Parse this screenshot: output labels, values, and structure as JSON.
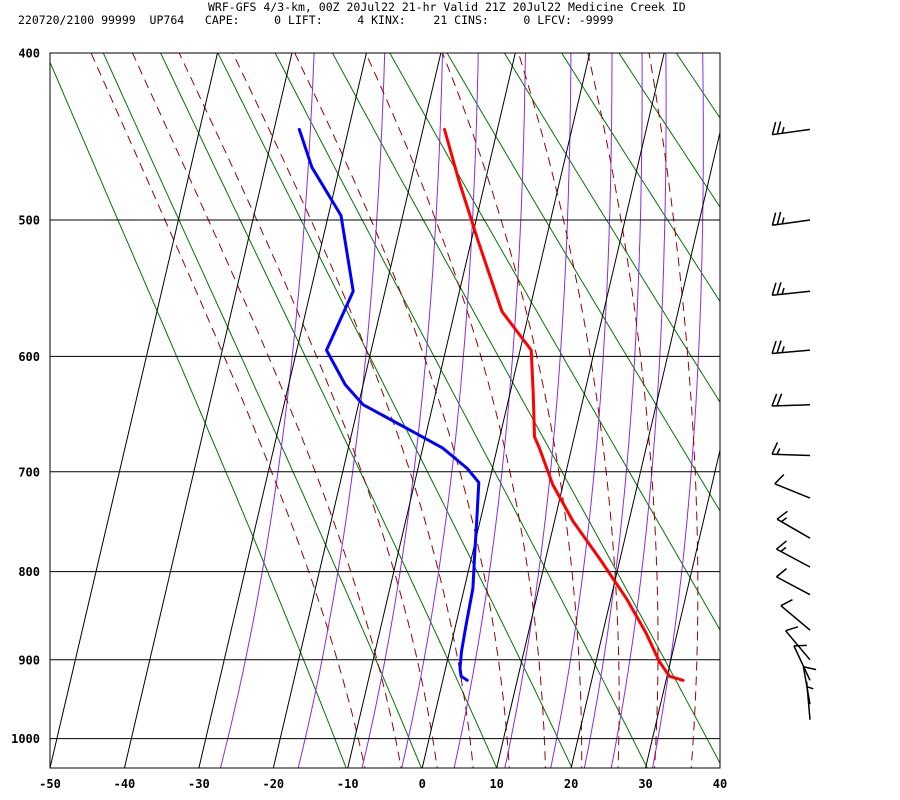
{
  "header": {
    "line1": "WRF-GFS 4/3-km, 00Z 20Jul22 21-hr Valid 21Z 20Jul22 Medicine Creek ID",
    "line2": "220720/2100 99999  UP764   CAPE:     0 LIFT:     4 KINX:    21 CINS:     0 LFCV: -9999"
  },
  "chart_data": {
    "type": "line",
    "title": "",
    "xlabel": "",
    "ylabel": "",
    "x_ticks": [
      -50,
      -40,
      -30,
      -20,
      -10,
      0,
      10,
      20,
      30,
      40
    ],
    "y_ticks": [
      400,
      500,
      600,
      700,
      800,
      900,
      1000
    ],
    "xlim": [
      -50,
      40
    ],
    "ylim": [
      1040,
      400
    ],
    "y_scale": "log",
    "grid": true,
    "series": [
      {
        "id": "temperature",
        "color": "#ff0000",
        "points": [
          [
            -18,
            443
          ],
          [
            -15,
            474
          ],
          [
            -11,
            514
          ],
          [
            -6,
            565
          ],
          [
            -1,
            595
          ],
          [
            0.5,
            630
          ],
          [
            2,
            668
          ],
          [
            3,
            678
          ],
          [
            6,
            712
          ],
          [
            10,
            748
          ],
          [
            15,
            787
          ],
          [
            20,
            829
          ],
          [
            24,
            868
          ],
          [
            27,
            902
          ],
          [
            29,
            920
          ],
          [
            31,
            925
          ]
        ]
      },
      {
        "id": "dewpoint",
        "color": "#0000ff",
        "points": [
          [
            -37.5,
            443
          ],
          [
            -35,
            466
          ],
          [
            -30,
            497
          ],
          [
            -26.5,
            550
          ],
          [
            -28.5,
            595
          ],
          [
            -25,
            623
          ],
          [
            -22,
            640
          ],
          [
            -14,
            665
          ],
          [
            -10,
            678
          ],
          [
            -6,
            697
          ],
          [
            -4,
            710
          ],
          [
            -3,
            746
          ],
          [
            -2,
            783
          ],
          [
            -1,
            818
          ],
          [
            -0.5,
            857
          ],
          [
            0,
            890
          ],
          [
            0.5,
            910
          ],
          [
            1,
            920
          ],
          [
            2,
            925
          ]
        ]
      }
    ],
    "wind_barbs": [
      {
        "p": 443,
        "dir": 262,
        "spd": 25
      },
      {
        "p": 500,
        "dir": 262,
        "spd": 25
      },
      {
        "p": 550,
        "dir": 264,
        "spd": 25
      },
      {
        "p": 595,
        "dir": 265,
        "spd": 25
      },
      {
        "p": 640,
        "dir": 268,
        "spd": 20
      },
      {
        "p": 685,
        "dir": 272,
        "spd": 15
      },
      {
        "p": 725,
        "dir": 292,
        "spd": 10
      },
      {
        "p": 765,
        "dir": 300,
        "spd": 15
      },
      {
        "p": 795,
        "dir": 298,
        "spd": 15
      },
      {
        "p": 825,
        "dir": 298,
        "spd": 10
      },
      {
        "p": 865,
        "dir": 310,
        "spd": 10
      },
      {
        "p": 900,
        "dir": 320,
        "spd": 10
      },
      {
        "p": 925,
        "dir": 335,
        "spd": 10
      },
      {
        "p": 955,
        "dir": 350,
        "spd": 10
      },
      {
        "p": 975,
        "dir": 355,
        "spd": 5
      }
    ],
    "skew_degC": 22.5,
    "isotherms_degC": [
      -50,
      -40,
      -30,
      -20,
      -10,
      0,
      10,
      20,
      30,
      40
    ],
    "dry_adiabats_K": [
      260,
      270,
      280,
      290,
      300,
      310,
      320,
      330,
      340,
      350,
      360,
      370,
      380,
      390,
      400
    ],
    "moist_adiabats_degC": [
      -10,
      -5,
      0,
      5,
      10,
      15,
      20,
      25,
      30,
      35
    ],
    "mixing_ratio_gkg": [
      0.4,
      1,
      2,
      3,
      5,
      8,
      12,
      16,
      20,
      28
    ],
    "colors": {
      "dry_adiabat": "#007700",
      "moist_adiabat": "#990000",
      "mixing_ratio": "#8b2be2",
      "grid": "#000000"
    }
  }
}
